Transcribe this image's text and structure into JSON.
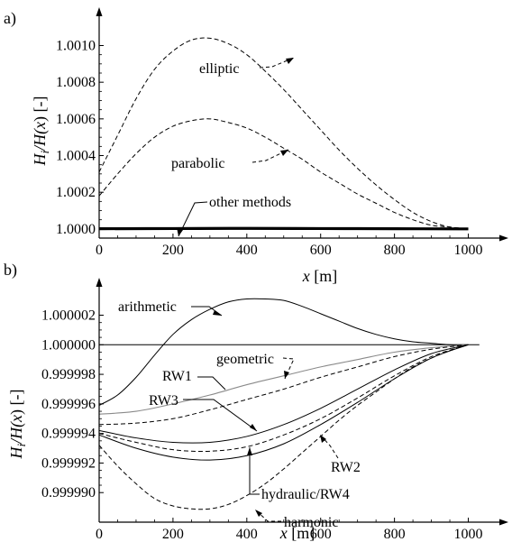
{
  "chart_data": [
    {
      "type": "line",
      "panel_label": "a)",
      "xlabel": "x [m]",
      "xlabel_parts": {
        "var": "x",
        "unit": " [m]"
      },
      "ylabel": "Hi/H(x) [-]",
      "ylabel_parts": {
        "a": "H",
        "sub": "i",
        "b": "/H(",
        "c": "x",
        "d": ") [-]"
      },
      "xlim": [
        0,
        1050
      ],
      "ylim": [
        0.99995,
        1.00115
      ],
      "xticks": [
        0,
        200,
        400,
        600,
        800,
        1000
      ],
      "yticks": [
        1.0,
        1.0002,
        1.0004,
        1.0006,
        1.0008,
        1.001
      ],
      "ytick_labels": [
        "1.0000",
        "1.0002",
        "1.0004",
        "1.0006",
        "1.0008",
        "1.0010"
      ],
      "series": [
        {
          "name": "elliptic",
          "style": "dashed",
          "x": [
            0,
            50,
            100,
            150,
            200,
            250,
            300,
            350,
            400,
            450,
            500,
            550,
            600,
            650,
            700,
            750,
            800,
            850,
            900,
            950,
            1000
          ],
          "y": [
            1.00031,
            1.00051,
            1.00071,
            1.00087,
            1.00097,
            1.00103,
            1.00104,
            1.00101,
            1.00095,
            1.00086,
            1.00076,
            1.00065,
            1.00054,
            1.00043,
            1.00033,
            1.00024,
            1.00016,
            1.00009,
            1.00004,
            1.00001,
            1.0
          ]
        },
        {
          "name": "parabolic",
          "style": "dashed",
          "x": [
            0,
            50,
            100,
            150,
            200,
            250,
            300,
            350,
            400,
            450,
            500,
            550,
            600,
            650,
            700,
            750,
            800,
            850,
            900,
            950,
            1000
          ],
          "y": [
            1.00018,
            1.0003,
            1.00041,
            1.0005,
            1.00056,
            1.00059,
            1.0006,
            1.00058,
            1.00055,
            1.0005,
            1.00044,
            1.00038,
            1.00031,
            1.00025,
            1.00019,
            1.00014,
            1.00009,
            1.00005,
            1.00002,
            1.00001,
            1.0
          ]
        },
        {
          "name": "other methods",
          "style": "solid-thick",
          "x": [
            0,
            200,
            400,
            600,
            800,
            1000
          ],
          "y": [
            1.000001,
            1.000002,
            1.000003,
            1.000002,
            1.000001,
            1.0
          ]
        }
      ],
      "annotations": [
        {
          "text": "elliptic",
          "x": 398,
          "y": 1.000942
        },
        {
          "text": "parabolic",
          "x": 396,
          "y": 1.000548
        },
        {
          "text": "other methods",
          "x": 215,
          "y": 1.00001
        }
      ]
    },
    {
      "type": "line",
      "panel_label": "b)",
      "xlabel": "x [m]",
      "xlabel_parts": {
        "var": "x",
        "unit": " [m]"
      },
      "ylabel": "Hi/H(x) [-]",
      "ylabel_parts": {
        "a": "H",
        "sub": "i",
        "b": "/H(",
        "c": "x",
        "d": ") [-]"
      },
      "xlim": [
        0,
        1050
      ],
      "ylim": [
        0.999988,
        1.0000038
      ],
      "xticks": [
        0,
        200,
        400,
        600,
        800,
        1000
      ],
      "yticks": [
        0.99999,
        0.999992,
        0.999994,
        0.999996,
        0.999998,
        1.0,
        1.000002
      ],
      "ytick_labels": [
        "0.999990",
        "0.999992",
        "0.999994",
        "0.999996",
        "0.999998",
        "1.000000",
        "1.000002"
      ],
      "series": [
        {
          "name": "arithmetic",
          "style": "solid",
          "x": [
            0,
            50,
            100,
            150,
            200,
            250,
            300,
            350,
            400,
            450,
            500,
            550,
            600,
            650,
            700,
            750,
            800,
            850,
            900,
            950,
            1000
          ],
          "y": [
            0.9999959,
            0.9999966,
            0.9999978,
            0.9999993,
            1.0000007,
            1.0000017,
            1.0000024,
            1.0000029,
            1.0000031,
            1.0000031,
            1.000003,
            1.0000026,
            1.0000021,
            1.0000016,
            1.0000011,
            1.0000007,
            1.0000004,
            1.0000002,
            1.0000001,
            1.0,
            1.0
          ]
        },
        {
          "name": "reference",
          "style": "solid",
          "x": [
            0,
            1030
          ],
          "y": [
            1.0,
            1.0
          ]
        },
        {
          "name": "geometric",
          "style": "solid-gray",
          "x": [
            0,
            100,
            200,
            300,
            400,
            500,
            600,
            700,
            800,
            900,
            1000
          ],
          "y": [
            0.9999953,
            0.9999955,
            0.999996,
            0.9999966,
            0.9999973,
            0.9999979,
            0.9999985,
            0.999999,
            0.9999995,
            0.9999998,
            1.0
          ]
        },
        {
          "name": "RW1",
          "style": "dashed",
          "x": [
            0,
            100,
            200,
            300,
            400,
            500,
            600,
            700,
            800,
            900,
            1000
          ],
          "y": [
            0.9999946,
            0.9999947,
            0.999995,
            0.9999956,
            0.9999963,
            0.999997,
            0.9999978,
            0.9999985,
            0.9999992,
            0.9999997,
            1.0
          ]
        },
        {
          "name": "RW3",
          "style": "solid",
          "x": [
            0,
            100,
            200,
            300,
            400,
            500,
            600,
            700,
            800,
            900,
            1000
          ],
          "y": [
            0.9999942,
            0.9999937,
            0.9999934,
            0.9999934,
            0.9999938,
            0.9999946,
            0.9999957,
            0.999997,
            0.9999983,
            0.9999994,
            1.0
          ]
        },
        {
          "name": "RW2",
          "style": "dashed",
          "x": [
            0,
            100,
            200,
            300,
            400,
            500,
            600,
            700,
            800,
            900,
            1000
          ],
          "y": [
            0.999994,
            0.9999934,
            0.9999929,
            0.9999928,
            0.9999931,
            0.9999939,
            0.999995,
            0.9999964,
            0.9999979,
            0.9999992,
            1.0
          ]
        },
        {
          "name": "hydraulic/RW4",
          "style": "solid",
          "x": [
            0,
            100,
            200,
            300,
            400,
            500,
            600,
            700,
            800,
            900,
            1000
          ],
          "y": [
            0.9999939,
            0.999993,
            0.9999924,
            0.9999922,
            0.9999925,
            0.9999933,
            0.9999946,
            0.9999961,
            0.9999977,
            0.9999991,
            1.0
          ]
        },
        {
          "name": "harmonic",
          "style": "dashed",
          "x": [
            0,
            50,
            100,
            150,
            200,
            250,
            300,
            350,
            400,
            450,
            500,
            550,
            600,
            650,
            700,
            750,
            800,
            850,
            900,
            950,
            1000
          ],
          "y": [
            0.9999932,
            0.9999918,
            0.9999906,
            0.9999896,
            0.9999891,
            0.9999889,
            0.9999889,
            0.9999892,
            0.9999898,
            0.9999906,
            0.9999916,
            0.9999927,
            0.9999938,
            0.9999949,
            0.9999959,
            0.9999968,
            0.9999977,
            0.9999985,
            0.9999991,
            0.9999996,
            1.0
          ]
        }
      ],
      "annotations": [
        {
          "text": "arithmetic",
          "x": 245,
          "y": 1.0000031
        },
        {
          "text": "geometric",
          "x": 440,
          "y": 0.9999966
        },
        {
          "text": "RW1",
          "x": 390,
          "y": 0.9999963
        },
        {
          "text": "RW3",
          "x": 360,
          "y": 0.9999933
        },
        {
          "text": "RW2",
          "x": 555,
          "y": 0.999994
        },
        {
          "text": "hydraulic/RW4",
          "x": 400,
          "y": 0.9999926
        },
        {
          "text": "harmonic",
          "x": 480,
          "y": 0.999991
        }
      ]
    }
  ]
}
